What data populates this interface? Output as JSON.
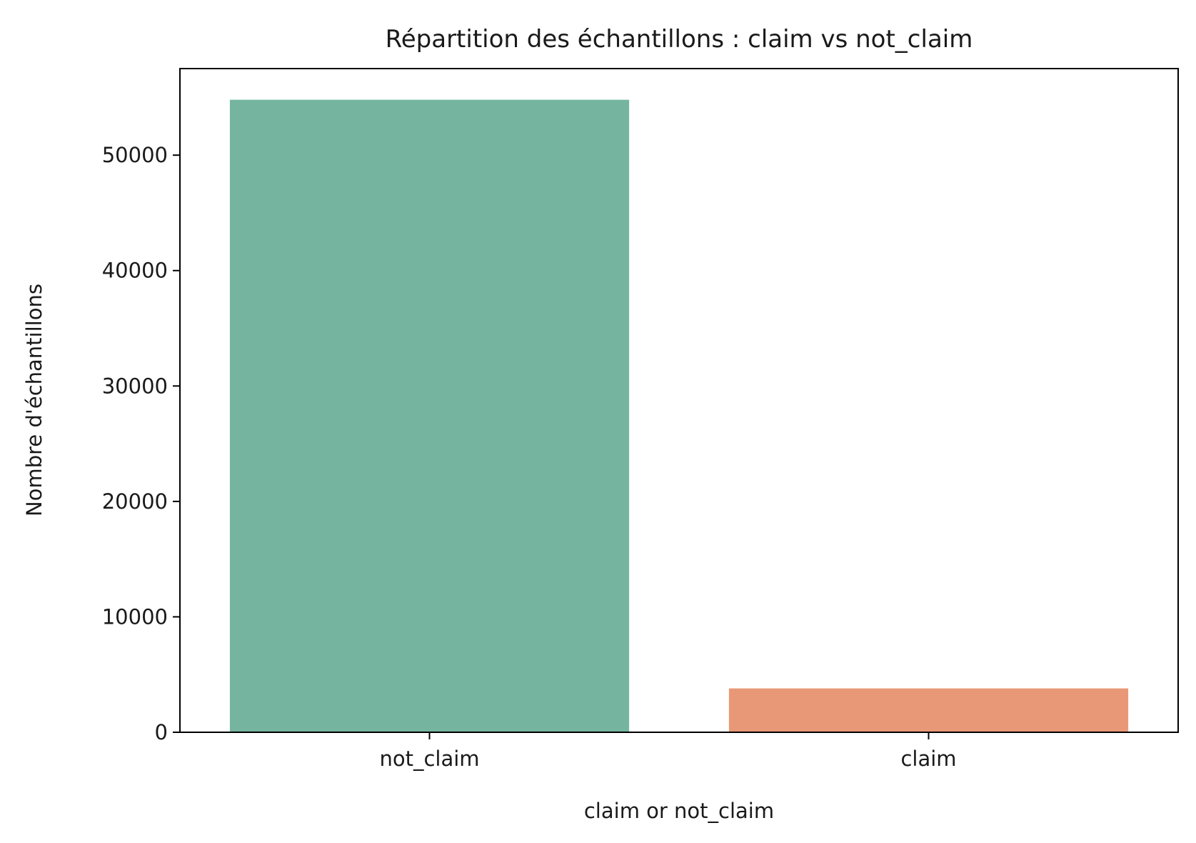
{
  "chart_data": {
    "type": "bar",
    "title": "Répartition des échantillons : claim vs not_claim",
    "xlabel": "claim or not_claim",
    "ylabel": "Nombre d'échantillons",
    "categories": [
      "not_claim",
      "claim"
    ],
    "values": [
      54800,
      3800
    ],
    "colors": [
      "#75b5a0",
      "#e99877"
    ],
    "ylim": [
      0,
      57500
    ],
    "yticks": [
      0,
      10000,
      20000,
      30000,
      40000,
      50000
    ],
    "grid": false,
    "legend": "none"
  }
}
